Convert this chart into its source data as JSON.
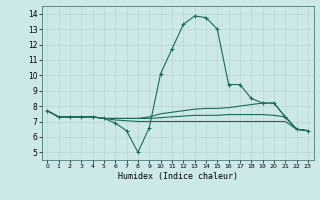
{
  "xlabel": "Humidex (Indice chaleur)",
  "background_color": "#cce8e8",
  "grid_color": "#b8d4d4",
  "line_color": "#1a6b5a",
  "xlim": [
    -0.5,
    23.5
  ],
  "ylim": [
    4.5,
    14.5
  ],
  "xticks": [
    0,
    1,
    2,
    3,
    4,
    5,
    6,
    7,
    8,
    9,
    10,
    11,
    12,
    13,
    14,
    15,
    16,
    17,
    18,
    19,
    20,
    21,
    22,
    23
  ],
  "yticks": [
    5,
    6,
    7,
    8,
    9,
    10,
    11,
    12,
    13,
    14
  ],
  "series": [
    [
      7.7,
      7.3,
      7.3,
      7.3,
      7.3,
      7.2,
      6.9,
      6.4,
      5.0,
      6.6,
      10.1,
      11.7,
      13.3,
      13.85,
      13.75,
      13.0,
      9.4,
      9.4,
      8.5,
      8.2,
      8.2,
      7.3,
      6.5,
      6.4
    ],
    [
      7.7,
      7.3,
      7.3,
      7.3,
      7.3,
      7.2,
      7.2,
      7.2,
      7.2,
      7.3,
      7.5,
      7.6,
      7.7,
      7.8,
      7.85,
      7.85,
      7.9,
      8.0,
      8.1,
      8.2,
      8.2,
      7.3,
      6.5,
      6.4
    ],
    [
      7.7,
      7.3,
      7.3,
      7.3,
      7.3,
      7.2,
      7.2,
      7.2,
      7.2,
      7.2,
      7.25,
      7.3,
      7.35,
      7.4,
      7.4,
      7.4,
      7.45,
      7.45,
      7.45,
      7.45,
      7.4,
      7.3,
      6.5,
      6.4
    ],
    [
      7.7,
      7.3,
      7.3,
      7.3,
      7.3,
      7.2,
      7.1,
      7.05,
      7.0,
      7.0,
      7.0,
      7.0,
      7.0,
      7.0,
      7.0,
      7.0,
      7.0,
      7.0,
      7.0,
      7.0,
      7.0,
      7.0,
      6.5,
      6.4
    ]
  ],
  "marker_series": 0
}
